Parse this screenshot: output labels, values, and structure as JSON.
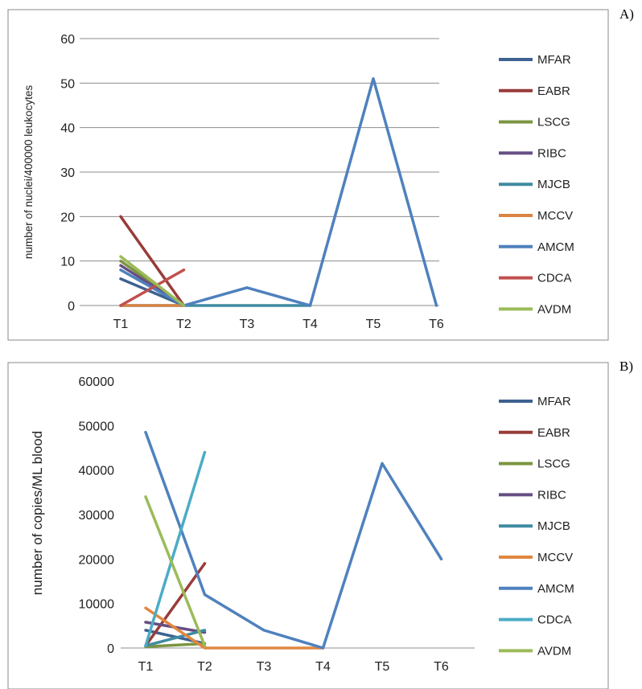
{
  "panel_labels": {
    "a": "A)",
    "b": "B)"
  },
  "chart_data": [
    {
      "type": "line",
      "panel": "A)",
      "ylabel": "number of nuclei/400000 leukocytes",
      "ylim": [
        0,
        60
      ],
      "yticks": [
        0,
        10,
        20,
        30,
        40,
        50,
        60
      ],
      "categories": [
        "T1",
        "T2",
        "T3",
        "T4",
        "T5",
        "T6"
      ],
      "grid": true,
      "legend_position": "right",
      "series": [
        {
          "name": "MFAR",
          "color": "#3d6291",
          "values": [
            6,
            0,
            null,
            null,
            null,
            null
          ]
        },
        {
          "name": "EABR",
          "color": "#983c3a",
          "values": [
            20,
            0,
            null,
            null,
            null,
            null
          ]
        },
        {
          "name": "LSCG",
          "color": "#7b9540",
          "values": [
            10,
            0,
            null,
            null,
            null,
            null
          ]
        },
        {
          "name": "RIBC",
          "color": "#664e84",
          "values": [
            9,
            0,
            null,
            null,
            null,
            null
          ]
        },
        {
          "name": "MJCB",
          "color": "#3f8ba1",
          "values": [
            0,
            0,
            0,
            0,
            null,
            null
          ]
        },
        {
          "name": "MCCV",
          "color": "#d98444",
          "values": [
            0,
            0,
            null,
            null,
            null,
            null
          ]
        },
        {
          "name": "AMCM",
          "color": "#4f81bd",
          "values": [
            8,
            0,
            4,
            0,
            51,
            0
          ]
        },
        {
          "name": "CDCA",
          "color": "#c0504d",
          "values": [
            0,
            8,
            null,
            null,
            null,
            null
          ]
        },
        {
          "name": "AVDM",
          "color": "#9bbb59",
          "values": [
            11,
            0,
            null,
            null,
            null,
            null
          ]
        }
      ]
    },
    {
      "type": "line",
      "panel": "B)",
      "ylabel": "number of copies/ML blood",
      "ylim": [
        0,
        60000
      ],
      "yticks": [
        0,
        10000,
        20000,
        30000,
        40000,
        50000,
        60000
      ],
      "categories": [
        "T1",
        "T2",
        "T3",
        "T4",
        "T5",
        "T6"
      ],
      "grid": false,
      "legend_position": "right",
      "series": [
        {
          "name": "MFAR",
          "color": "#3d6291",
          "values": [
            4000,
            1000,
            null,
            null,
            null,
            null
          ]
        },
        {
          "name": "EABR",
          "color": "#983c3a",
          "values": [
            500,
            19000,
            null,
            null,
            null,
            null
          ]
        },
        {
          "name": "LSCG",
          "color": "#7b9540",
          "values": [
            300,
            1000,
            null,
            null,
            null,
            null
          ]
        },
        {
          "name": "RIBC",
          "color": "#664e84",
          "values": [
            5800,
            3500,
            null,
            null,
            null,
            null
          ]
        },
        {
          "name": "MJCB",
          "color": "#3f8ba1",
          "values": [
            500,
            4000,
            null,
            null,
            null,
            null
          ]
        },
        {
          "name": "MCCV",
          "color": "#e0883f",
          "values": [
            9000,
            0,
            0,
            0,
            null,
            null
          ]
        },
        {
          "name": "AMCM",
          "color": "#4f81bd",
          "values": [
            48500,
            12000,
            4000,
            0,
            41500,
            20000
          ]
        },
        {
          "name": "CDCA",
          "color": "#4bacc6",
          "values": [
            500,
            44000,
            null,
            null,
            null,
            null
          ]
        },
        {
          "name": "AVDM",
          "color": "#9bbb59",
          "values": [
            34000,
            500,
            null,
            null,
            null,
            null
          ]
        }
      ]
    }
  ]
}
